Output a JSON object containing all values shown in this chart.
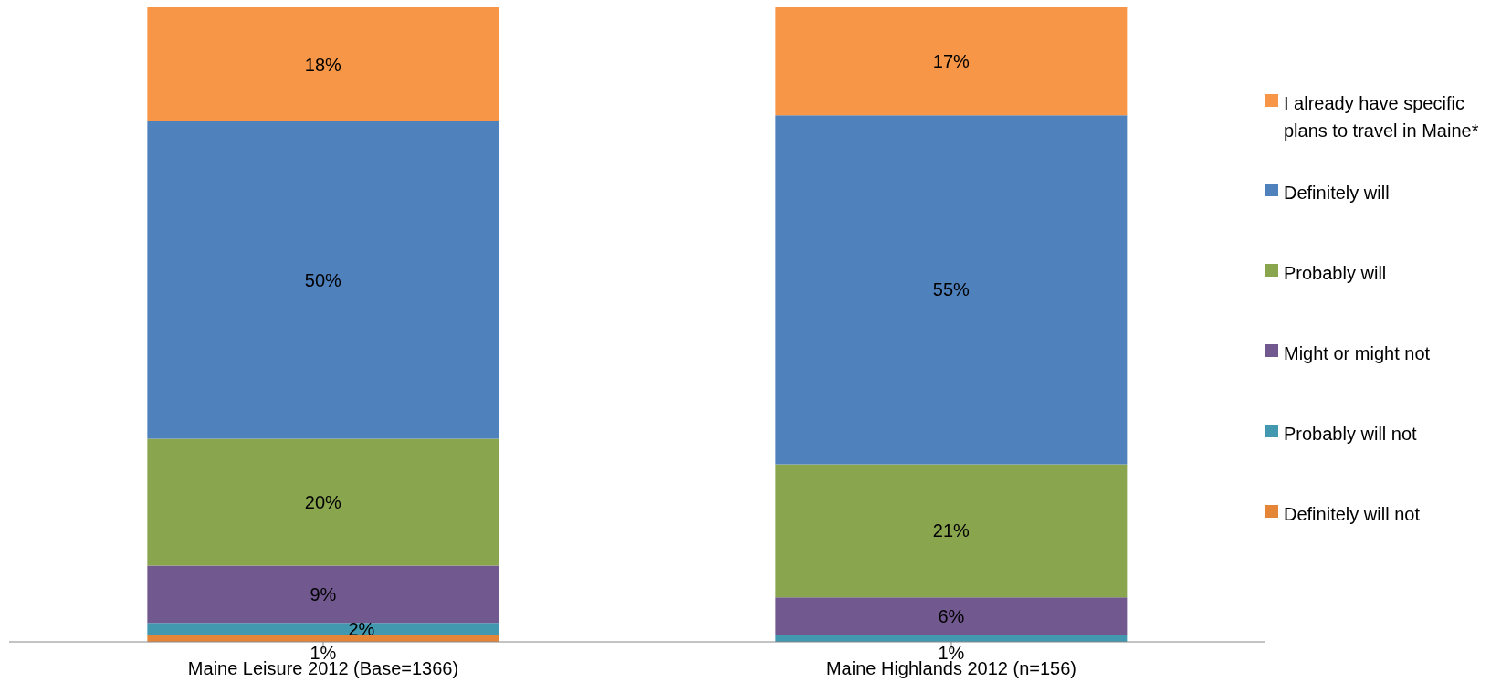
{
  "chart_data": {
    "type": "bar",
    "stacked": true,
    "categories": [
      "Maine Leisure 2012 (Base=1366)",
      "Maine Highlands 2012 (n=156)"
    ],
    "series": [
      {
        "name": "Definitely will not",
        "color": "#e48538",
        "values": [
          1,
          null
        ],
        "value_labels": [
          "1%",
          null
        ]
      },
      {
        "name": "Probably will not",
        "color": "#4198af",
        "values": [
          2,
          1
        ],
        "value_labels": [
          "2%",
          "1%"
        ]
      },
      {
        "name": "Might or might not",
        "color": "#71588f",
        "values": [
          9,
          6
        ],
        "value_labels": [
          "9%",
          "6%"
        ]
      },
      {
        "name": "Probably will",
        "color": "#89a54e",
        "values": [
          20,
          21
        ],
        "value_labels": [
          "20%",
          "21%"
        ]
      },
      {
        "name": "Definitely will",
        "color": "#4f81bd",
        "values": [
          50,
          55
        ],
        "value_labels": [
          "50%",
          "55%"
        ]
      },
      {
        "name": "I already have specific plans to travel in Maine*",
        "color": "#f79646",
        "values": [
          18,
          17
        ],
        "value_labels": [
          "18%",
          "17%"
        ]
      }
    ],
    "ylim": [
      0,
      100
    ],
    "tick_labels": "x",
    "legend": "right",
    "grid": false
  }
}
